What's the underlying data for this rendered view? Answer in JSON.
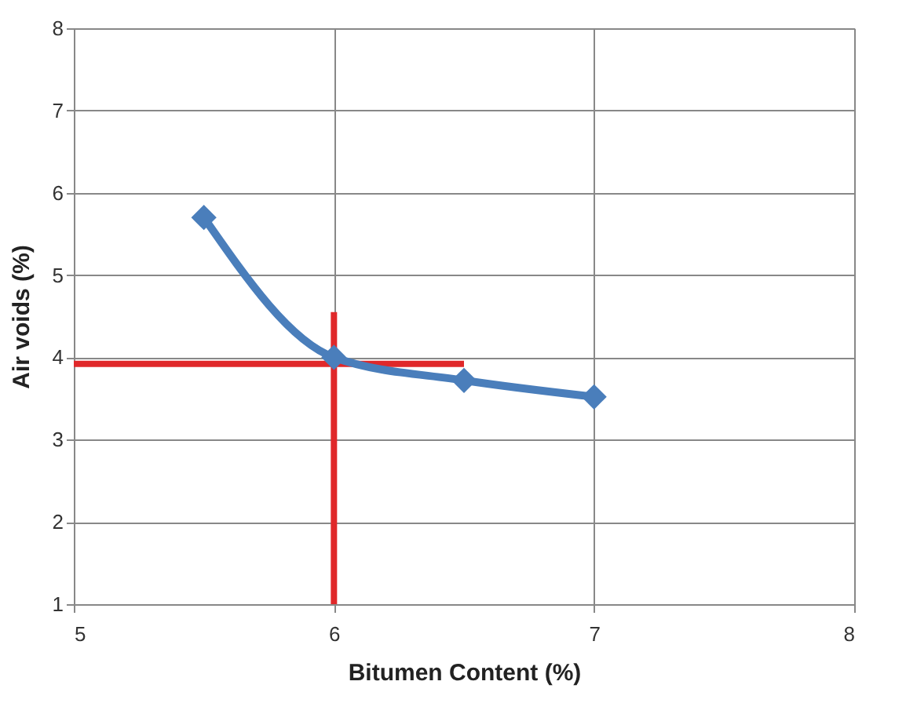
{
  "chart_data": {
    "type": "line",
    "xlabel": "Bitumen Content (%)",
    "ylabel": "Air voids (%)",
    "xlim": [
      5,
      8
    ],
    "xticks": [
      5,
      6,
      7,
      8
    ],
    "ylim": [
      1,
      8
    ],
    "yticks": [
      1,
      2,
      3,
      4,
      5,
      6,
      7,
      8
    ],
    "grid": true,
    "marker": "diamond",
    "line_style": "solid",
    "series": [
      {
        "color": "#e0282a",
        "marker": "none",
        "x": [
          5,
          6.5
        ],
        "values": [
          3.92,
          3.92
        ]
      },
      {
        "color": "#e0282a",
        "marker": "none",
        "x": [
          6,
          6
        ],
        "values": [
          1,
          4.55
        ]
      },
      {
        "color": "#4a7ebb",
        "x": [
          5.5,
          6,
          6.5,
          7
        ],
        "values": [
          5.7,
          4.0,
          3.72,
          3.52
        ]
      }
    ]
  }
}
